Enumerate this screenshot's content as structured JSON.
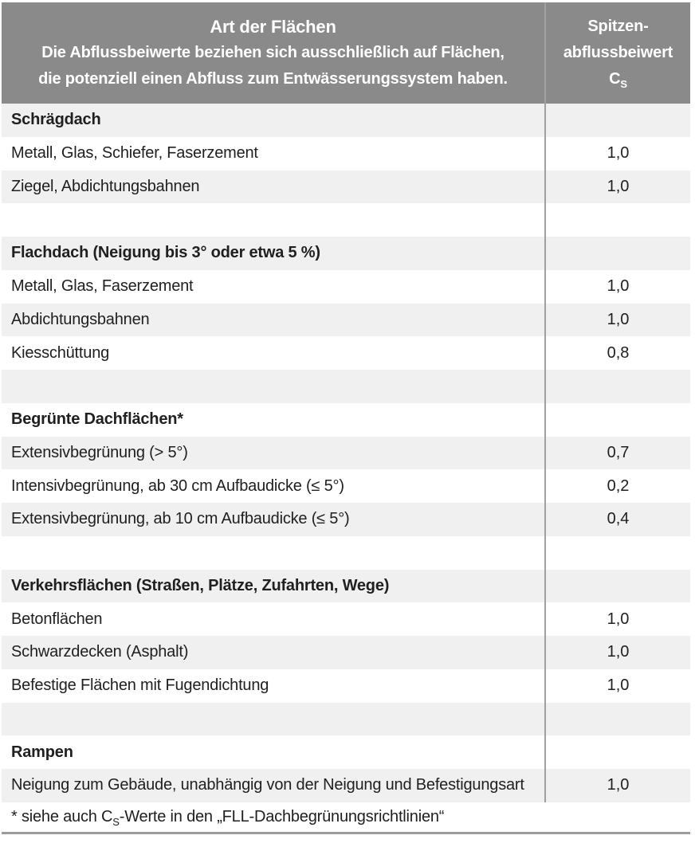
{
  "colors": {
    "header_bg": "#8a8a8a",
    "header_text": "#ffffff",
    "row_alt_bg": "#f0f0f0",
    "divider": "#a0a0a0",
    "table_border": "#9c9c9c"
  },
  "header": {
    "col1": {
      "title": "Art der Flächen",
      "line2": "Die Abflussbeiwerte beziehen sich ausschließlich auf Flächen,",
      "line3": "die potenziell einen Abfluss zum Entwässerungssystem haben."
    },
    "col2": {
      "line1": "Spitzen-",
      "line2": "abflussbeiwert",
      "symbol": "C",
      "symbol_sub": "S"
    }
  },
  "rows": [
    {
      "type": "section",
      "label": "Schrägdach",
      "value": ""
    },
    {
      "type": "item",
      "label": "Metall, Glas, Schiefer, Faserzement",
      "value": "1,0"
    },
    {
      "type": "item",
      "label": "Ziegel, Abdichtungsbahnen",
      "value": "1,0"
    },
    {
      "type": "spacer",
      "label": "",
      "value": ""
    },
    {
      "type": "section",
      "label": "Flachdach (Neigung bis 3° oder etwa 5 %)",
      "value": ""
    },
    {
      "type": "item",
      "label": "Metall, Glas, Faserzement",
      "value": "1,0"
    },
    {
      "type": "item",
      "label": "Abdichtungsbahnen",
      "value": "1,0"
    },
    {
      "type": "item",
      "label": "Kiesschüttung",
      "value": "0,8"
    },
    {
      "type": "spacer",
      "label": "",
      "value": ""
    },
    {
      "type": "section",
      "label": "Begrünte Dachflächen*",
      "value": ""
    },
    {
      "type": "item",
      "label": "Extensivbegrünung (> 5°)",
      "value": "0,7"
    },
    {
      "type": "item",
      "label": "Intensivbegrünung, ab 30 cm Aufbaudicke (≤ 5°)",
      "value": "0,2"
    },
    {
      "type": "item",
      "label": "Extensivbegrünung, ab 10 cm Aufbaudicke (≤ 5°)",
      "value": "0,4"
    },
    {
      "type": "spacer",
      "label": "",
      "value": ""
    },
    {
      "type": "section",
      "label": "Verkehrsflächen (Straßen, Plätze, Zufahrten, Wege)",
      "value": ""
    },
    {
      "type": "item",
      "label": "Betonflächen",
      "value": "1,0"
    },
    {
      "type": "item",
      "label": "Schwarzdecken (Asphalt)",
      "value": "1,0"
    },
    {
      "type": "item",
      "label": "Befestige Flächen mit Fugendichtung",
      "value": "1,0"
    },
    {
      "type": "spacer",
      "label": "",
      "value": ""
    },
    {
      "type": "section",
      "label": "Rampen",
      "value": ""
    },
    {
      "type": "item",
      "label": "Neigung zum Gebäude, unabhängig von der Neigung und Befestigungsart",
      "value": "1,0"
    }
  ],
  "footnote": {
    "prefix": "* siehe auch C",
    "sub": "S",
    "suffix": "-Werte in den „FLL-Dachbegrünungsrichtlinien“"
  }
}
